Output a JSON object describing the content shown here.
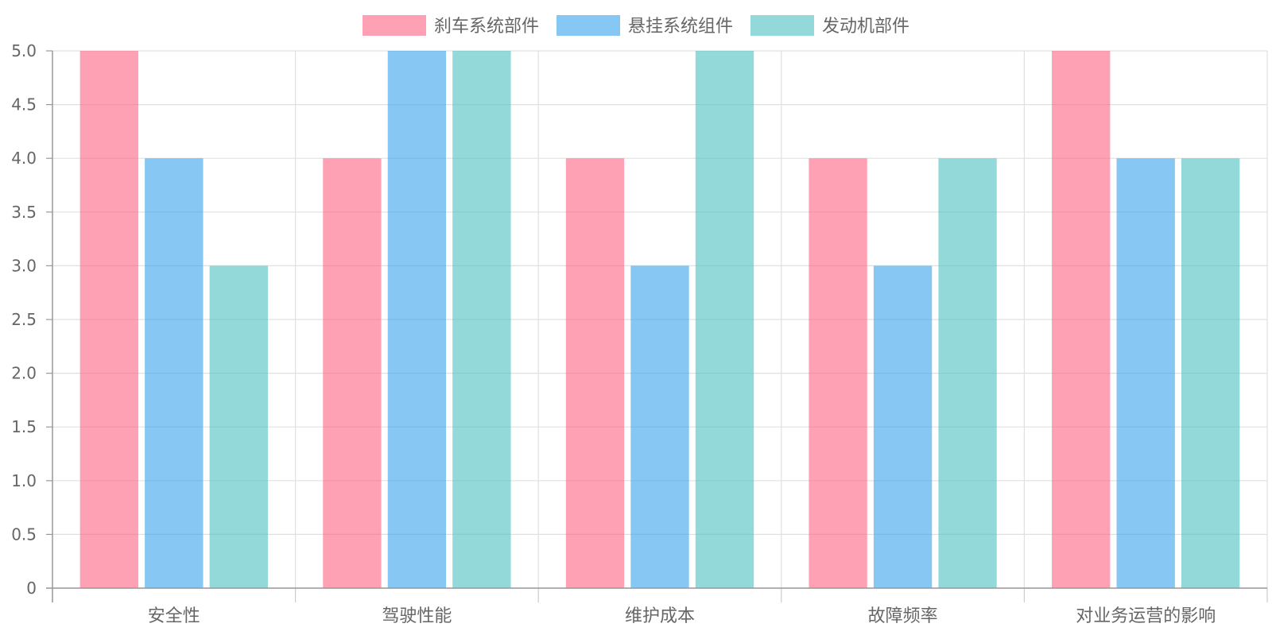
{
  "chart_data": {
    "type": "bar",
    "categories": [
      "安全性",
      "驾驶性能",
      "维护成本",
      "故障频率",
      "对业务运营的影响"
    ],
    "series": [
      {
        "name": "刹车系统部件",
        "values": [
          5,
          4,
          4,
          4,
          5
        ],
        "color": "#FF6384"
      },
      {
        "name": "悬挂系统组件",
        "values": [
          4,
          5,
          3,
          3,
          4
        ],
        "color": "#36A2EB"
      },
      {
        "name": "发动机部件",
        "values": [
          3,
          5,
          5,
          4,
          4
        ],
        "color": "#4BC0C0"
      }
    ],
    "ylim": [
      0,
      5
    ],
    "yticks": [
      "0",
      "0.5",
      "1.0",
      "1.5",
      "2.0",
      "2.5",
      "3.0",
      "3.5",
      "4.0",
      "4.5",
      "5.0"
    ],
    "grid": true,
    "legend_position": "top-center"
  }
}
